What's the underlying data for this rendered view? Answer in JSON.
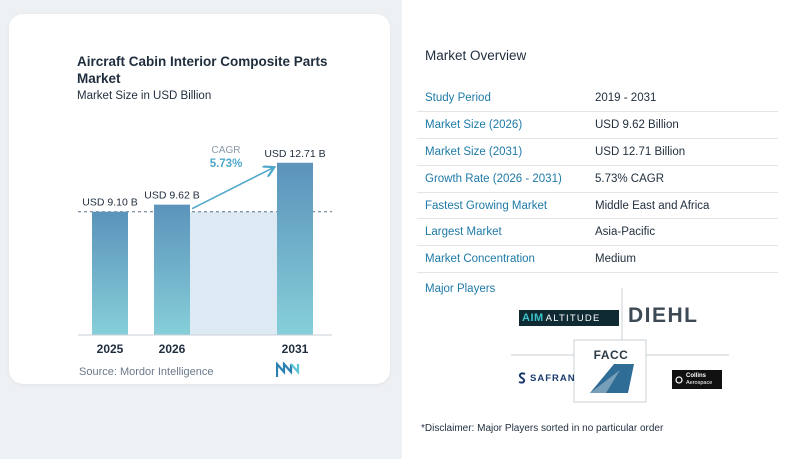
{
  "chart_data": {
    "type": "bar",
    "title": "Aircraft Cabin Interior Composite Parts Market",
    "subtitle": "Market Size in USD Billion",
    "categories": [
      "2025",
      "2026",
      "2031"
    ],
    "values": [
      9.1,
      9.62,
      12.71
    ],
    "value_labels": [
      "USD 9.10 B",
      "USD 9.62 B",
      "USD 12.71 B"
    ],
    "cagr_label": "CAGR",
    "cagr_value": "5.73%",
    "colors": {
      "bar_top": "#5b93bb",
      "bar_bottom": "#86cfd9",
      "band": "#dde9f3",
      "arrow": "#4fa8c9"
    },
    "ylim": [
      0,
      13.5
    ]
  },
  "source": "Source: Mordor Intelligence",
  "overview": {
    "title": "Market Overview",
    "rows": [
      {
        "key": "Study Period",
        "value": "2019 - 2031"
      },
      {
        "key": "Market Size (2026)",
        "value": "USD 9.62 Billion"
      },
      {
        "key": "Market Size (2031)",
        "value": "USD 12.71 Billion"
      },
      {
        "key": "Growth Rate (2026 - 2031)",
        "value": "5.73% CAGR"
      },
      {
        "key": "Fastest Growing Market",
        "value": "Middle East and Africa"
      },
      {
        "key": "Largest Market",
        "value": "Asia-Pacific"
      },
      {
        "key": "Market Concentration",
        "value": "Medium"
      }
    ]
  },
  "players": {
    "title": "Major Players",
    "aim_part1": "AIM",
    "aim_part2": "ALTITUDE",
    "diehl": "DIEHL",
    "facc": "FACC",
    "safran": "SAFRAN",
    "collins_line1": "Collins",
    "collins_line2": "Aerospace"
  },
  "disclaimer": "*Disclaimer: Major Players sorted in no particular order"
}
